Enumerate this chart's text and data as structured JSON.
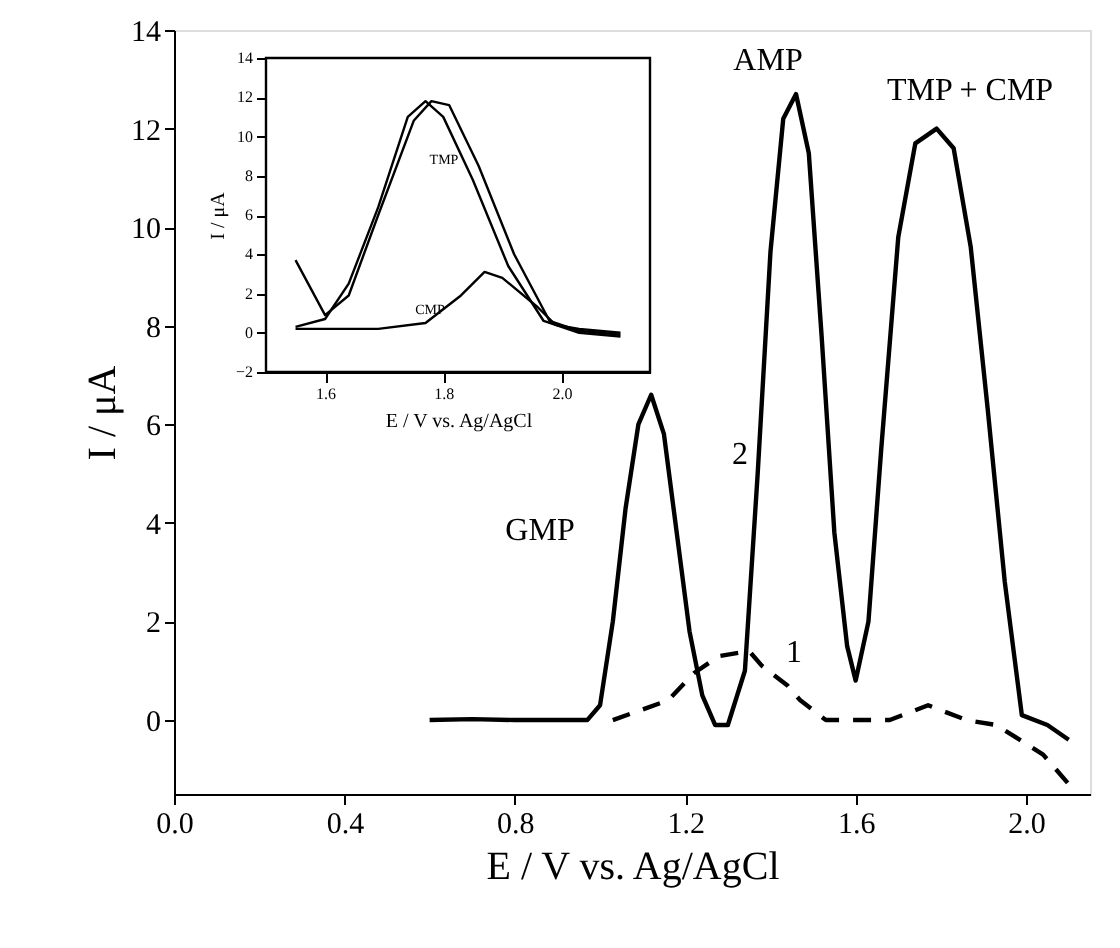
{
  "chart_data": [
    {
      "type": "line",
      "xlabel": "E / V vs. Ag/AgCl",
      "ylabel": "I / μA",
      "xlim": [
        0,
        2.15
      ],
      "ylim": [
        -1.5,
        14
      ],
      "xticks": [
        {
          "value": 0,
          "label": "0.0"
        },
        {
          "value": 0.4,
          "label": "0.4"
        },
        {
          "value": 0.8,
          "label": "0.8"
        },
        {
          "value": 1.2,
          "label": "1.2"
        },
        {
          "value": 1.6,
          "label": "1.6"
        },
        {
          "value": 2,
          "label": "2.0"
        }
      ],
      "yticks": [
        0,
        2,
        4,
        6,
        8,
        10,
        12,
        14
      ],
      "series": [
        {
          "color": "#000000",
          "line_style": "dashed",
          "x": [
            1.03,
            1.16,
            1.22,
            1.28,
            1.35,
            1.38,
            1.44,
            1.47,
            1.53,
            1.68,
            1.77,
            1.86,
            1.93,
            2.04,
            2.1
          ],
          "values": [
            0,
            0.4,
            0.95,
            1.3,
            1.4,
            1.1,
            0.7,
            0.4,
            0,
            0,
            0.3,
            0,
            -0.1,
            -0.7,
            -1.3
          ]
        },
        {
          "color": "#000000",
          "line_style": "solid",
          "x": [
            0.6,
            0.7,
            0.8,
            0.9,
            0.97,
            1.0,
            1.03,
            1.06,
            1.09,
            1.12,
            1.15,
            1.18,
            1.21,
            1.24,
            1.27,
            1.3,
            1.34,
            1.37,
            1.4,
            1.43,
            1.46,
            1.49,
            1.52,
            1.55,
            1.58,
            1.6,
            1.63,
            1.66,
            1.7,
            1.74,
            1.79,
            1.83,
            1.87,
            1.91,
            1.95,
            1.99,
            2.05,
            2.1
          ],
          "values": [
            0,
            0.02,
            0,
            0,
            0,
            0.3,
            2.0,
            4.3,
            6.0,
            6.6,
            5.8,
            3.8,
            1.8,
            0.5,
            -0.1,
            -0.1,
            1.0,
            5.0,
            9.5,
            12.2,
            12.7,
            11.5,
            7.8,
            3.8,
            1.5,
            0.8,
            2.0,
            5.5,
            9.8,
            11.7,
            12.0,
            11.6,
            9.6,
            6.3,
            2.8,
            0.1,
            -0.1,
            -0.4
          ]
        }
      ],
      "annotations": [
        "GMP",
        "AMP",
        "TMP + CMP",
        "2",
        "1"
      ]
    },
    {
      "type": "line",
      "xlabel": "E / V vs. Ag/AgCl",
      "ylabel": "I / μA",
      "xlim": [
        1.5,
        2.15
      ],
      "ylim": [
        -2,
        14
      ],
      "xticks": [
        1.6,
        1.8,
        {
          "value": 2,
          "label": "2.0"
        }
      ],
      "yticks": [
        -2,
        0,
        2,
        4,
        6,
        8,
        10,
        12,
        14
      ],
      "series": [
        {
          "color": "#000000",
          "line_style": "solid",
          "x": [
            1.55,
            1.6,
            1.64,
            1.69,
            1.75,
            1.78,
            1.81,
            1.86,
            1.92,
            1.98,
            2.03,
            2.1
          ],
          "values": [
            3.7,
            0.9,
            1.9,
            6.0,
            10.8,
            11.8,
            11.6,
            8.5,
            4.0,
            0.6,
            0.1,
            -0.1
          ]
        },
        {
          "color": "#000000",
          "line_style": "solid",
          "x": [
            1.55,
            1.6,
            1.64,
            1.69,
            1.74,
            1.77,
            1.8,
            1.85,
            1.91,
            1.97,
            2.03,
            2.1
          ],
          "values": [
            0.3,
            0.7,
            2.5,
            6.4,
            11.0,
            11.8,
            11.0,
            7.8,
            3.4,
            0.6,
            0,
            -0.2
          ]
        },
        {
          "color": "#000000",
          "line_style": "solid",
          "x": [
            1.55,
            1.69,
            1.77,
            1.83,
            1.87,
            1.9,
            1.96,
            1.99,
            2.03,
            2.1
          ],
          "values": [
            0.2,
            0.2,
            0.5,
            1.9,
            3.1,
            2.8,
            1.3,
            0.4,
            0.2,
            0
          ]
        }
      ],
      "annotations": [
        "TMP",
        "CMP"
      ]
    }
  ]
}
